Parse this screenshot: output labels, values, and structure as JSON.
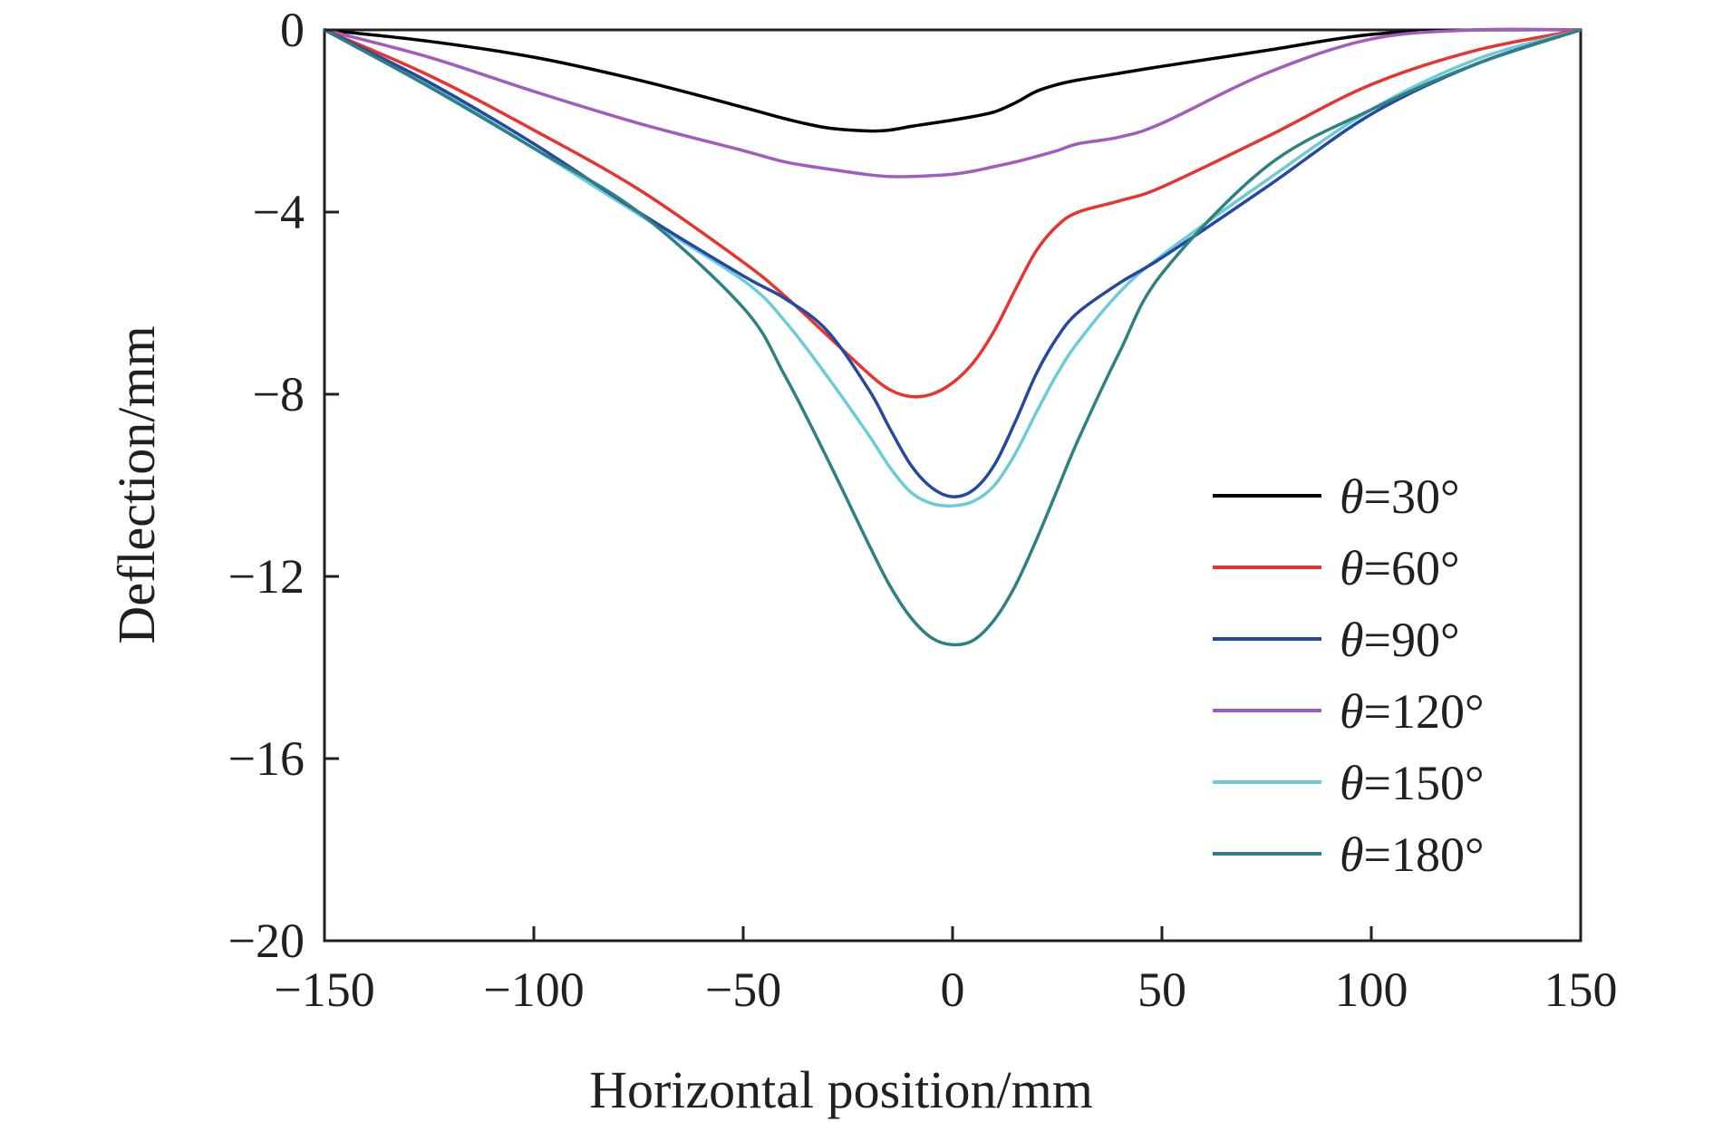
{
  "chart_data": {
    "type": "line",
    "title": "",
    "xlabel": "Horizontal position/mm",
    "ylabel": "Deflection/mm",
    "xlim": [
      -150,
      150
    ],
    "ylim": [
      -20,
      0
    ],
    "xticks": [
      -150,
      -100,
      -50,
      0,
      50,
      100,
      150
    ],
    "xtick_labels": [
      "−150",
      "−100",
      "−50",
      "0",
      "50",
      "100",
      "150"
    ],
    "yticks": [
      0,
      -4,
      -8,
      -12,
      -16,
      -20
    ],
    "ytick_labels": [
      "0",
      "−4",
      "−8",
      "−12",
      "−16",
      "−20"
    ],
    "grid": false,
    "legend_position": "bottom-right",
    "legend_theta": "θ",
    "x": [
      -150,
      -125,
      -100,
      -75,
      -50,
      -40,
      -30,
      -20,
      -15,
      -10,
      -5,
      0,
      5,
      10,
      15,
      20,
      25,
      30,
      40,
      50,
      75,
      100,
      125,
      150
    ],
    "series": [
      {
        "name": "=30°",
        "color": "#000000",
        "values": [
          0,
          -0.25,
          -0.6,
          -1.1,
          -1.7,
          -1.95,
          -2.15,
          -2.22,
          -2.2,
          -2.12,
          -2.05,
          -1.98,
          -1.9,
          -1.8,
          -1.6,
          -1.35,
          -1.2,
          -1.1,
          -0.95,
          -0.8,
          -0.45,
          -0.1,
          0.0,
          0
        ]
      },
      {
        "name": "=60°",
        "color": "#e8332f",
        "values": [
          0,
          -1.0,
          -2.2,
          -3.5,
          -5.1,
          -5.85,
          -6.7,
          -7.55,
          -7.9,
          -8.05,
          -8.0,
          -7.75,
          -7.3,
          -6.6,
          -5.7,
          -4.85,
          -4.3,
          -4.0,
          -3.75,
          -3.45,
          -2.35,
          -1.2,
          -0.45,
          0
        ]
      },
      {
        "name": "=90°",
        "color": "#2549a0",
        "values": [
          0,
          -1.15,
          -2.5,
          -4.0,
          -5.4,
          -5.9,
          -6.6,
          -7.9,
          -8.75,
          -9.55,
          -10.05,
          -10.25,
          -10.1,
          -9.55,
          -8.6,
          -7.55,
          -6.75,
          -6.2,
          -5.55,
          -5.0,
          -3.45,
          -1.85,
          -0.75,
          0
        ]
      },
      {
        "name": "=120°",
        "color": "#a35cbd",
        "values": [
          0,
          -0.6,
          -1.35,
          -2.05,
          -2.65,
          -2.9,
          -3.05,
          -3.18,
          -3.22,
          -3.22,
          -3.2,
          -3.17,
          -3.1,
          -3.0,
          -2.9,
          -2.78,
          -2.65,
          -2.5,
          -2.35,
          -2.05,
          -0.95,
          -0.2,
          0.0,
          0
        ]
      },
      {
        "name": "=150°",
        "color": "#6ccbd8",
        "values": [
          0,
          -1.2,
          -2.6,
          -4.05,
          -5.5,
          -6.4,
          -7.6,
          -8.9,
          -9.6,
          -10.15,
          -10.4,
          -10.45,
          -10.35,
          -10.0,
          -9.3,
          -8.4,
          -7.55,
          -6.85,
          -5.75,
          -4.95,
          -3.3,
          -1.75,
          -0.65,
          0
        ]
      },
      {
        "name": "=180°",
        "color": "#2e8082",
        "values": [
          0,
          -1.25,
          -2.6,
          -4.0,
          -6.1,
          -7.6,
          -9.4,
          -11.3,
          -12.2,
          -12.9,
          -13.35,
          -13.5,
          -13.4,
          -12.95,
          -12.2,
          -11.2,
          -10.1,
          -9.0,
          -7.05,
          -5.35,
          -3.0,
          -1.75,
          -0.75,
          0
        ]
      }
    ]
  }
}
